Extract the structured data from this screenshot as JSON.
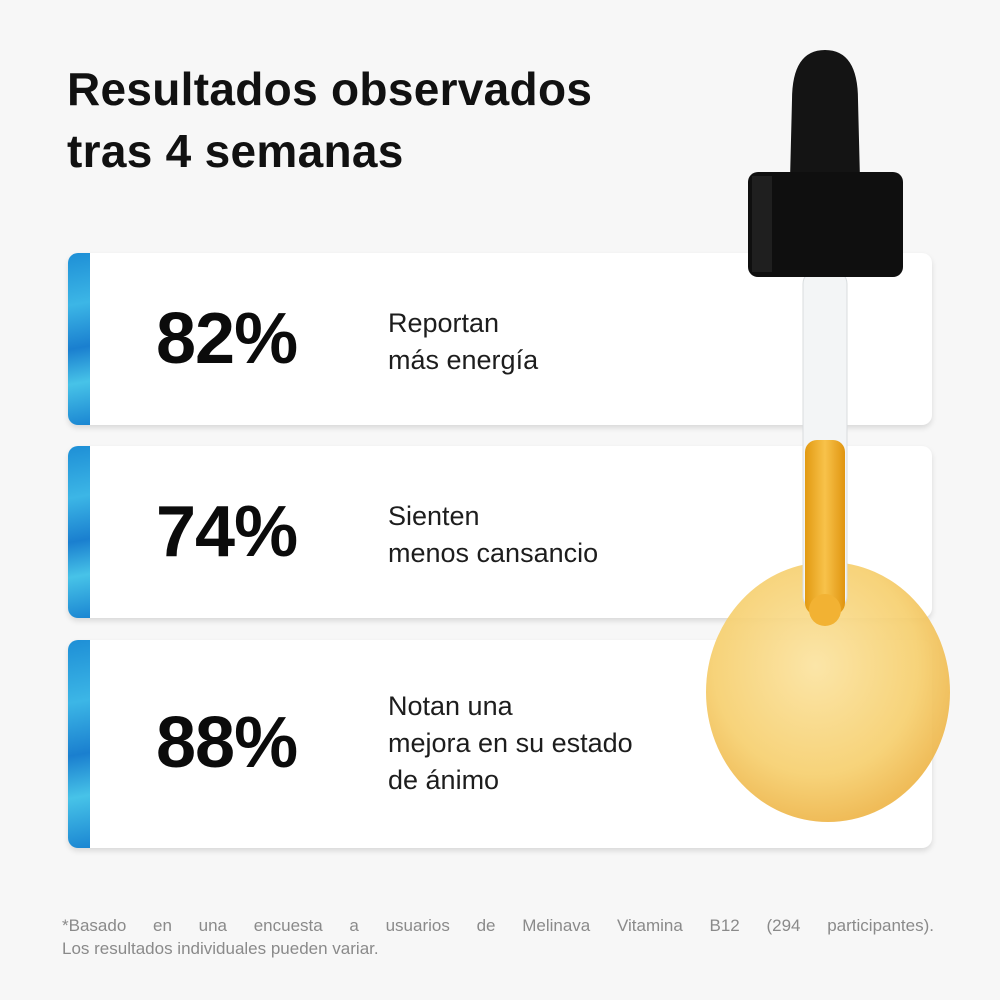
{
  "title": {
    "line1": "Resultados observados",
    "line2": "tras 4 semanas"
  },
  "stats": [
    {
      "value": "82%",
      "lines": [
        "Reportan",
        "más energía"
      ]
    },
    {
      "value": "74%",
      "lines": [
        "Sienten",
        "menos cansancio"
      ]
    },
    {
      "value": "88%",
      "lines": [
        "Notan una",
        "mejora en su estado",
        "de ánimo"
      ]
    }
  ],
  "footnote": {
    "line1": "*Basado en una encuesta a usuarios de Melinava Vitamina B12 (294 participantes).",
    "line2": "Los resultados individuales pueden variar."
  },
  "colors": {
    "accent": "#1e8fd6",
    "oil": "#f3b33a"
  }
}
